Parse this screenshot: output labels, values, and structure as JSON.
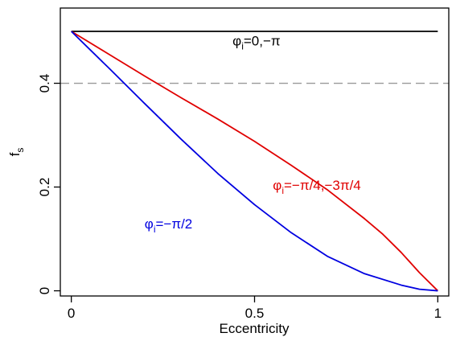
{
  "chart_data": {
    "type": "line",
    "xlabel": "Eccentricity",
    "ylabel_main": "f",
    "ylabel_sub": "s",
    "xlim": [
      -0.03,
      1.03
    ],
    "ylim": [
      -0.01,
      0.545
    ],
    "x_ticks": [
      {
        "value": 0,
        "label": "0"
      },
      {
        "value": 0.5,
        "label": "0.5"
      },
      {
        "value": 1,
        "label": "1"
      }
    ],
    "y_ticks": [
      {
        "value": 0,
        "label": "0"
      },
      {
        "value": 0.2,
        "label": "0.2"
      },
      {
        "value": 0.4,
        "label": "0.4"
      }
    ],
    "reference_line": {
      "y": 0.4,
      "color": "#999999",
      "style": "dashed"
    },
    "series": [
      {
        "color": "#000000",
        "x": [
          0,
          1
        ],
        "y": [
          0.5,
          0.5
        ]
      },
      {
        "color": "#e00000",
        "x": [
          0,
          0.1,
          0.2,
          0.3,
          0.4,
          0.5,
          0.6,
          0.7,
          0.8,
          0.85,
          0.9,
          0.95,
          1.0
        ],
        "y": [
          0.5,
          0.457,
          0.414,
          0.372,
          0.331,
          0.288,
          0.242,
          0.194,
          0.139,
          0.109,
          0.074,
          0.035,
          0.0
        ]
      },
      {
        "color": "#0000e0",
        "x": [
          0,
          0.1,
          0.2,
          0.3,
          0.4,
          0.5,
          0.6,
          0.7,
          0.8,
          0.9,
          0.95,
          1.0
        ],
        "y": [
          0.5,
          0.431,
          0.361,
          0.292,
          0.226,
          0.166,
          0.112,
          0.066,
          0.033,
          0.011,
          0.003,
          0.0
        ]
      }
    ],
    "annotations": [
      {
        "main": "φ",
        "sub": "i",
        "text": "=0,−π",
        "color": "#000000",
        "x": 0.44,
        "y": 0.473
      },
      {
        "main": "φ",
        "sub": "i",
        "text": "=−π/4,−3π/4",
        "color": "#e00000",
        "x": 0.55,
        "y": 0.195
      },
      {
        "main": "φ",
        "sub": "i",
        "text": "=−π/2",
        "color": "#0000e0",
        "x": 0.2,
        "y": 0.12
      }
    ]
  }
}
